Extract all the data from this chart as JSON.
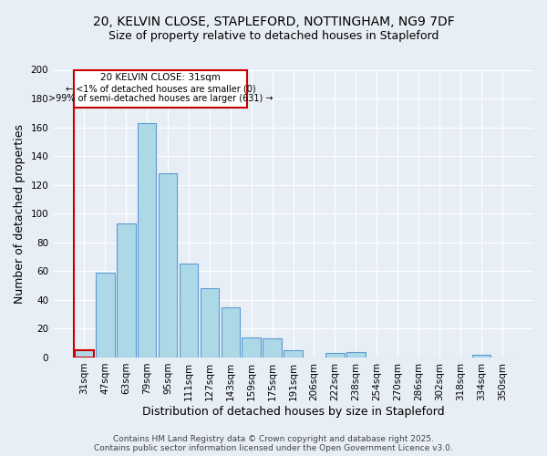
{
  "title_line1": "20, KELVIN CLOSE, STAPLEFORD, NOTTINGHAM, NG9 7DF",
  "title_line2": "Size of property relative to detached houses in Stapleford",
  "categories": [
    "31sqm",
    "47sqm",
    "63sqm",
    "79sqm",
    "95sqm",
    "111sqm",
    "127sqm",
    "143sqm",
    "159sqm",
    "175sqm",
    "191sqm",
    "206sqm",
    "222sqm",
    "238sqm",
    "254sqm",
    "270sqm",
    "286sqm",
    "302sqm",
    "318sqm",
    "334sqm",
    "350sqm"
  ],
  "values": [
    5,
    59,
    93,
    163,
    128,
    65,
    48,
    35,
    14,
    13,
    5,
    0,
    3,
    4,
    0,
    0,
    0,
    0,
    0,
    2,
    0
  ],
  "bar_color": "#add8e6",
  "bar_edge_color": "#5b9bd5",
  "highlight_bar_index": 0,
  "highlight_color": "#cc0000",
  "ylabel": "Number of detached properties",
  "xlabel": "Distribution of detached houses by size in Stapleford",
  "ylim": [
    0,
    200
  ],
  "yticks": [
    0,
    20,
    40,
    60,
    80,
    100,
    120,
    140,
    160,
    180,
    200
  ],
  "annotation_title": "20 KELVIN CLOSE: 31sqm",
  "annotation_line2": "← <1% of detached houses are smaller (0)",
  "annotation_line3": ">99% of semi-detached houses are larger (631) →",
  "annotation_box_color": "#ffffff",
  "annotation_box_edge": "#cc0000",
  "footer_line1": "Contains HM Land Registry data © Crown copyright and database right 2025.",
  "footer_line2": "Contains public sector information licensed under the Open Government Licence v3.0.",
  "background_color": "#e8eef5",
  "plot_background": "#e8eef5",
  "grid_color": "#ffffff",
  "title_fontsize": 10,
  "subtitle_fontsize": 9,
  "tick_fontsize": 7.5,
  "label_fontsize": 9,
  "footer_fontsize": 6.5
}
